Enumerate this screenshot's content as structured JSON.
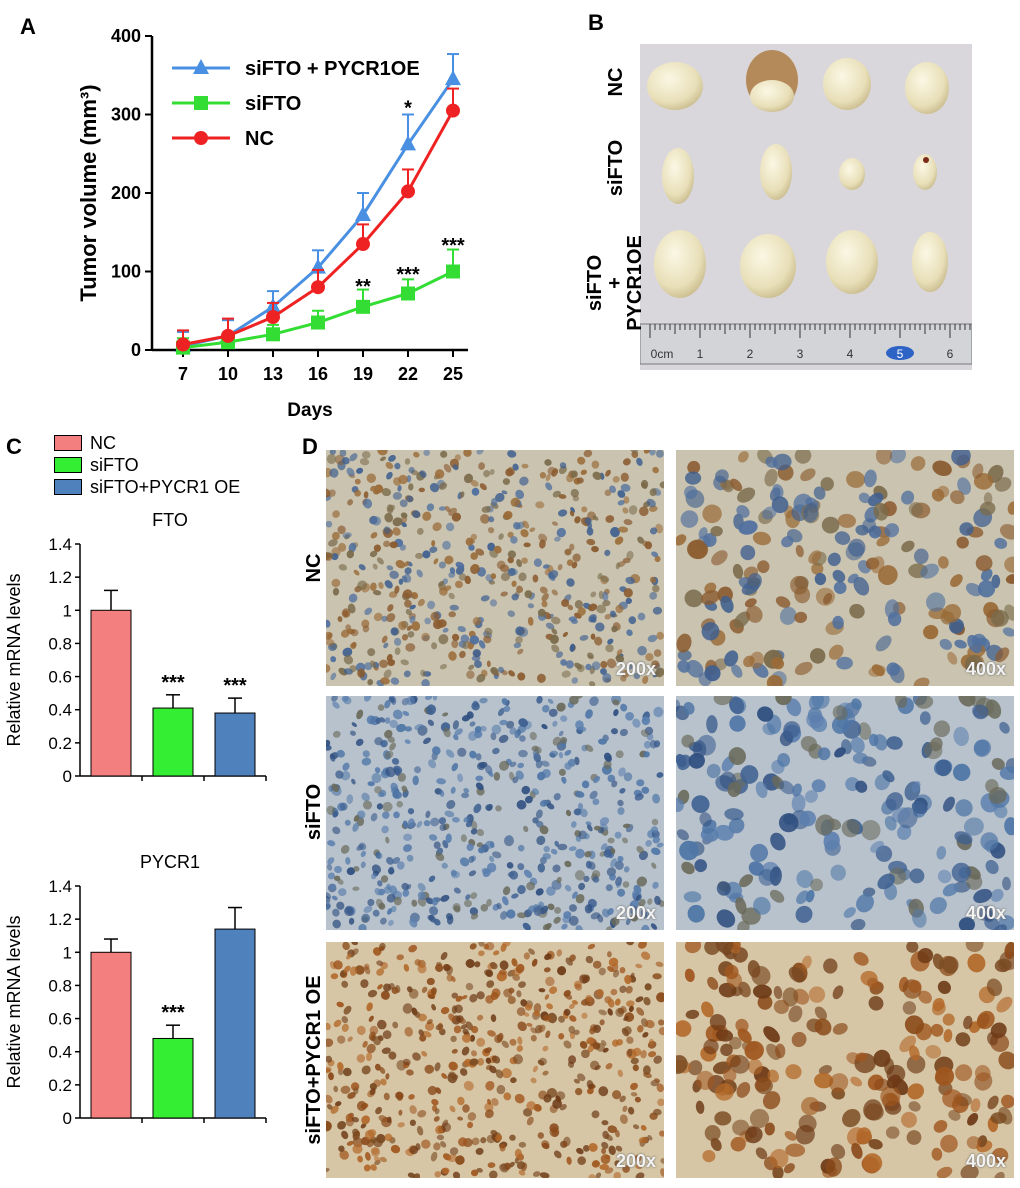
{
  "panels": {
    "a": "A",
    "b": "B",
    "c": "C",
    "d": "D"
  },
  "chart_data": [
    {
      "type": "line",
      "panel": "A",
      "title": "",
      "xlabel": "Days",
      "ylabel": "Tumor volume (mm³)",
      "x": [
        7,
        10,
        13,
        16,
        19,
        22,
        25
      ],
      "ylim": [
        0,
        400
      ],
      "yticks": [
        0,
        100,
        200,
        300,
        400
      ],
      "series": [
        {
          "name": "siFTO + PYCR1OE",
          "color": "#4a90e2",
          "marker": "triangle",
          "values": [
            5,
            18,
            55,
            105,
            172,
            262,
            345
          ],
          "errors": [
            18,
            20,
            20,
            22,
            28,
            38,
            32
          ]
        },
        {
          "name": "siFTO",
          "color": "#33dd33",
          "marker": "square",
          "values": [
            3,
            10,
            20,
            35,
            55,
            72,
            100
          ],
          "errors": [
            12,
            12,
            12,
            15,
            22,
            18,
            28
          ]
        },
        {
          "name": "NC",
          "color": "#ee2222",
          "marker": "circle",
          "values": [
            7,
            18,
            42,
            80,
            135,
            202,
            305
          ],
          "errors": [
            18,
            22,
            18,
            22,
            25,
            28,
            28
          ]
        }
      ],
      "annotations": [
        {
          "x": 19,
          "y": 78,
          "text": "**"
        },
        {
          "x": 22,
          "y": 93,
          "text": "***"
        },
        {
          "x": 25,
          "y": 130,
          "text": "***"
        },
        {
          "x": 22,
          "y": 305,
          "text": "*"
        }
      ]
    },
    {
      "type": "bar",
      "panel": "C",
      "title": "FTO",
      "ylabel": "Relative mRNA levels",
      "categories": [
        "NC",
        "siFTO",
        "siFTO+PYCR1 OE"
      ],
      "values": [
        1.0,
        0.41,
        0.38
      ],
      "errors": [
        0.12,
        0.08,
        0.09
      ],
      "colors": [
        "#f47f7f",
        "#33ee33",
        "#4f81bd"
      ],
      "significance": [
        "",
        "***",
        "***"
      ],
      "ylim": [
        0,
        1.4
      ],
      "yticks": [
        "0",
        "0.2",
        "0.4",
        "0.6",
        "0.8",
        "1",
        "1.2",
        "1.4"
      ]
    },
    {
      "type": "bar",
      "panel": "C",
      "title": "PYCR1",
      "ylabel": "Relative mRNA levels",
      "categories": [
        "NC",
        "siFTO",
        "siFTO+PYCR1 OE"
      ],
      "values": [
        1.0,
        0.48,
        1.14
      ],
      "errors": [
        0.08,
        0.08,
        0.13
      ],
      "colors": [
        "#f47f7f",
        "#33ee33",
        "#4f81bd"
      ],
      "significance": [
        "",
        "***",
        ""
      ],
      "ylim": [
        0,
        1.4
      ],
      "yticks": [
        "0",
        "0.2",
        "0.4",
        "0.6",
        "0.8",
        "1",
        "1.2",
        "1.4"
      ]
    }
  ],
  "legend_c": [
    "NC",
    "siFTO",
    "siFTO+PYCR1 OE"
  ],
  "panel_b": {
    "row_labels": [
      "NC",
      "siFTO",
      "siFTO\n+\nPYCR1OE"
    ],
    "ruler_labels": [
      "0cm",
      "1",
      "2",
      "3",
      "4",
      "5",
      "6"
    ]
  },
  "panel_d": {
    "row_labels": [
      "NC",
      "siFTO",
      "siFTO+PYCR1 OE"
    ],
    "mag_left": "200x",
    "mag_right": "400x"
  }
}
